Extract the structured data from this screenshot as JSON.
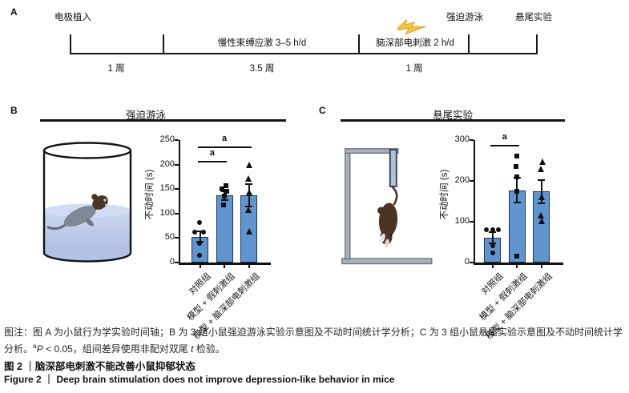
{
  "panel_a": {
    "label": "A",
    "milestones": [
      "电极植入",
      "强迫游泳",
      "悬尾实验"
    ],
    "phases": [
      "慢性束缚应激 3–5 h/d",
      "脑深部电刺激 2 h/d"
    ],
    "durations": [
      "1 周",
      "3.5 周",
      "1 周"
    ],
    "lightning_icon": "lightning-bolt"
  },
  "panel_b": {
    "label": "B",
    "illustration": "mouse-swimming-in-water-cylinder"
  },
  "panel_c": {
    "label": "C",
    "illustration": "mouse-hanging-by-tail-apparatus"
  },
  "chart_data": [
    {
      "id": "forced-swim",
      "type": "bar",
      "title": "强迫游泳",
      "ylabel": "不动时间 (s)",
      "ylim": [
        0,
        250
      ],
      "yticks": [
        0,
        50,
        100,
        150,
        200,
        250
      ],
      "categories": [
        "对照组",
        "模型 + 假刺激组",
        "模型 + 脑深部电刺激组"
      ],
      "bars": [
        {
          "mean": 53,
          "sem": 11,
          "marker": "circle",
          "points": [
            {
              "v": 82,
              "dx": -1
            },
            {
              "v": 62,
              "dx": -7
            },
            {
              "v": 62,
              "dx": 4
            },
            {
              "v": 39,
              "dx": -1
            },
            {
              "v": 14,
              "dx": -1
            }
          ]
        },
        {
          "mean": 137,
          "sem": 9,
          "marker": "square",
          "points": [
            {
              "v": 157,
              "dx": 2
            },
            {
              "v": 150,
              "dx": -3
            },
            {
              "v": 145,
              "dx": 3
            },
            {
              "v": 136,
              "dx": 0
            },
            {
              "v": 117,
              "dx": -1
            }
          ]
        },
        {
          "mean": 137,
          "sem": 23,
          "marker": "triangle",
          "points": [
            {
              "v": 200,
              "dx": 1
            },
            {
              "v": 171,
              "dx": 0
            },
            {
              "v": 144,
              "dx": 1
            },
            {
              "v": 108,
              "dx": 0
            },
            {
              "v": 64,
              "dx": 1
            }
          ]
        }
      ],
      "significance": [
        {
          "from": 0,
          "to": 1,
          "label": "a",
          "y": 207
        },
        {
          "from": 0,
          "to": 2,
          "label": "a",
          "y": 237
        }
      ],
      "legend": "none",
      "grid": false
    },
    {
      "id": "tail-suspension",
      "type": "bar",
      "title": "悬尾实验",
      "ylabel": "不动时间 (s)",
      "ylim": [
        0,
        300
      ],
      "yticks": [
        0,
        100,
        200,
        300
      ],
      "categories": [
        "对照组",
        "模型 + 假刺激组",
        "模型 + 脑深部电刺激组"
      ],
      "bars": [
        {
          "mean": 61,
          "sem": 13,
          "marker": "circle",
          "points": [
            {
              "v": 80,
              "dx": -8
            },
            {
              "v": 81,
              "dx": 0
            },
            {
              "v": 80,
              "dx": 7
            },
            {
              "v": 42,
              "dx": 0
            },
            {
              "v": 24,
              "dx": 0
            }
          ]
        },
        {
          "mean": 177,
          "sem": 30,
          "marker": "square",
          "points": [
            {
              "v": 261,
              "dx": 0
            },
            {
              "v": 235,
              "dx": -1
            },
            {
              "v": 209,
              "dx": 0
            },
            {
              "v": 174,
              "dx": 0
            },
            {
              "v": 15,
              "dx": 0
            }
          ]
        },
        {
          "mean": 174,
          "sem": 28,
          "marker": "triangle",
          "points": [
            {
              "v": 247,
              "dx": 2
            },
            {
              "v": 230,
              "dx": 0
            },
            {
              "v": 161,
              "dx": 1
            },
            {
              "v": 116,
              "dx": 0
            },
            {
              "v": 102,
              "dx": 1
            }
          ]
        }
      ],
      "significance": [
        {
          "from": 0,
          "to": 1,
          "label": "a",
          "y": 288
        }
      ],
      "legend": "none",
      "grid": false
    }
  ],
  "caption": {
    "note_line1": "图注：图 A 为小鼠行为学实验时间轴；B 为 3 组小鼠强迫游泳实验示意图及不动时间统计学分析；C 为 3 组小鼠悬尾实验示意图及不动时间统计学",
    "note_line2_prefix": "分析。",
    "stat_sup": "a",
    "stat_p": "P",
    "stat_mid": " < 0.05，组间差异使用非配对双尾 ",
    "stat_t": "t",
    "stat_suffix": " 检验。",
    "fig_title_zh": "图 2 ｜脑深部电刺激不能改善小鼠抑郁状态",
    "fig_title_en": "Figure 2 ｜ Deep brain stimulation does not improve depression-like behavior in mice"
  },
  "colors": {
    "bar_fill": "#6094ce",
    "bar_stroke": "#22344e",
    "axis": "#111111",
    "water_top": "#cdd7ef",
    "water_bottom": "#aebfe2",
    "water_surface": "#d2dcf2",
    "lightning": "#f5c142",
    "lightning_edge": "#d89a1f",
    "mouse_gray": "#7d8896",
    "mouse_brown": "#4a3423",
    "apparatus_gray": "#aab1bc",
    "apparatus_edge": "#6e7480",
    "strip_fill": "#b7c1cf",
    "strip_edge": "#2e4a75"
  }
}
